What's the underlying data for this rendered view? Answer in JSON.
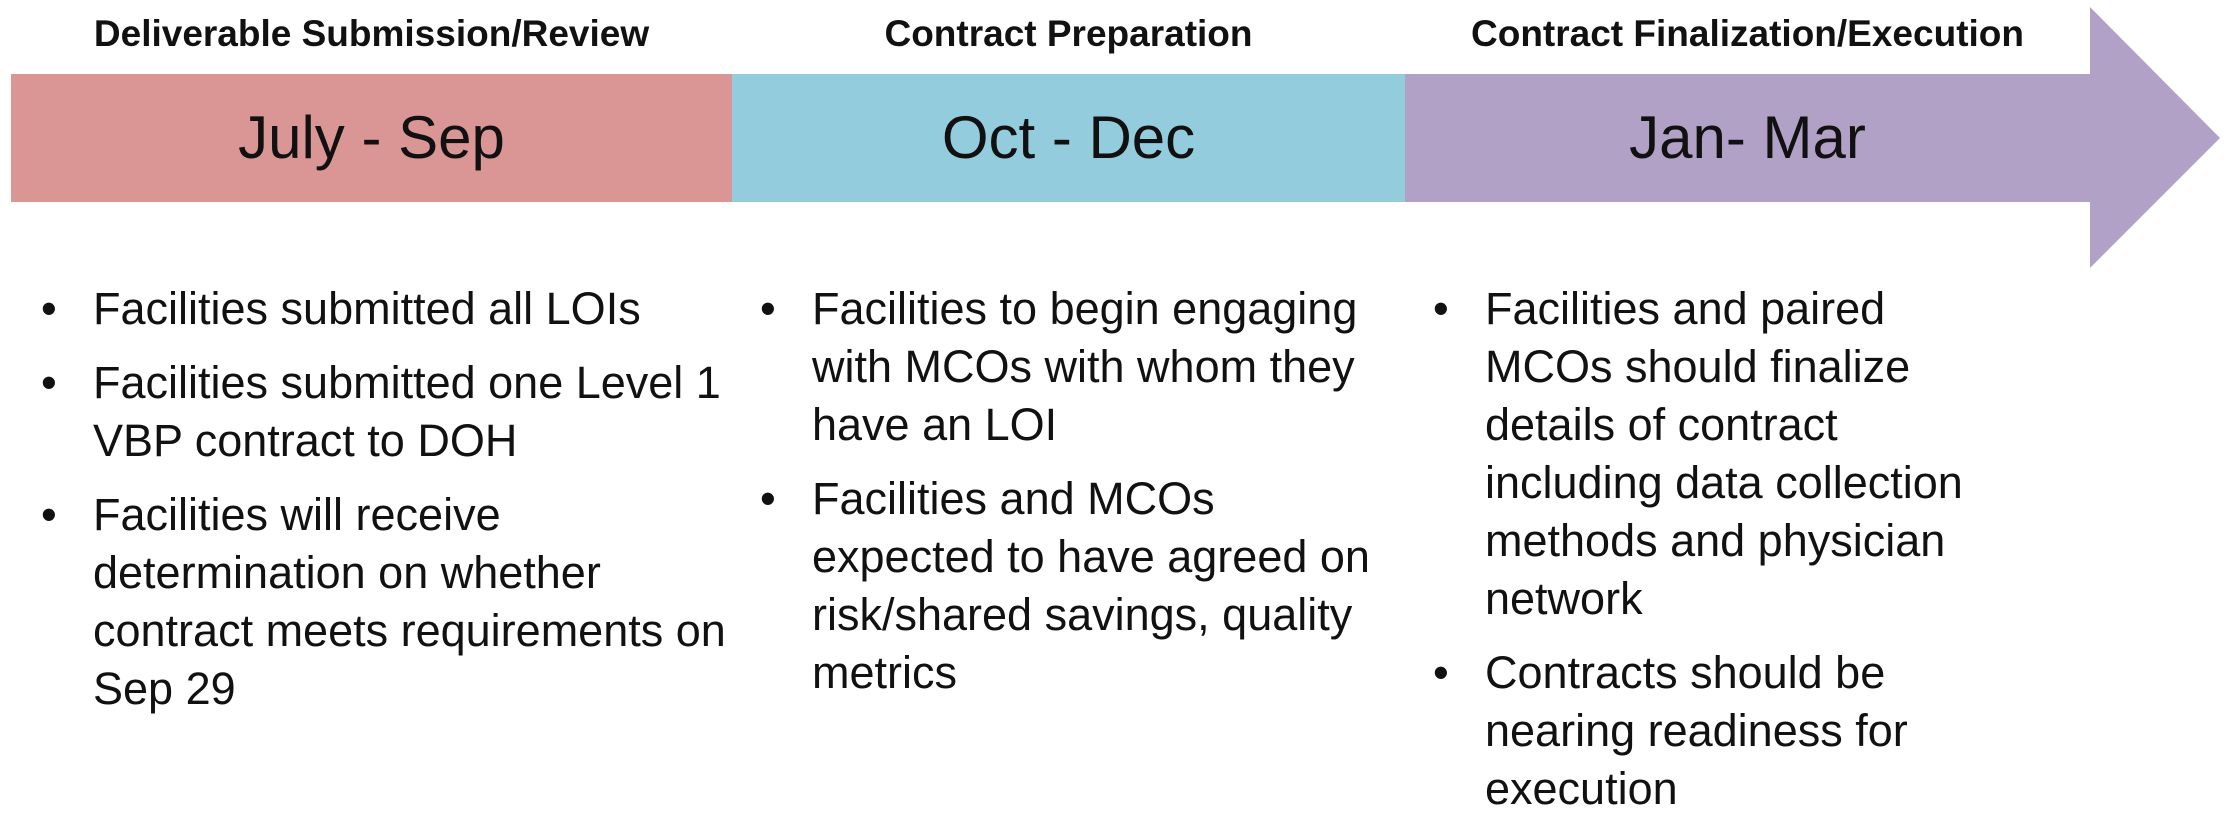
{
  "phases": [
    {
      "header": "Deliverable Submission/Review",
      "period": "July - Sep",
      "bullets": [
        "Facilities submitted all LOIs",
        "Facilities submitted one Level 1 VBP contract to DOH",
        "Facilities will receive determination on whether contract meets requirements on Sep 29"
      ]
    },
    {
      "header": "Contract Preparation",
      "period": "Oct - Dec",
      "bullets": [
        "Facilities to begin engaging with MCOs with whom they have an LOI",
        "Facilities and MCOs expected to have agreed on risk/shared savings, quality metrics"
      ]
    },
    {
      "header": "Contract Finalization/Execution",
      "period": "Jan- Mar",
      "bullets": [
        "Facilities and paired MCOs should finalize details of contract including data collection methods and physician network",
        "Contracts should be nearing readiness for execution"
      ]
    }
  ]
}
